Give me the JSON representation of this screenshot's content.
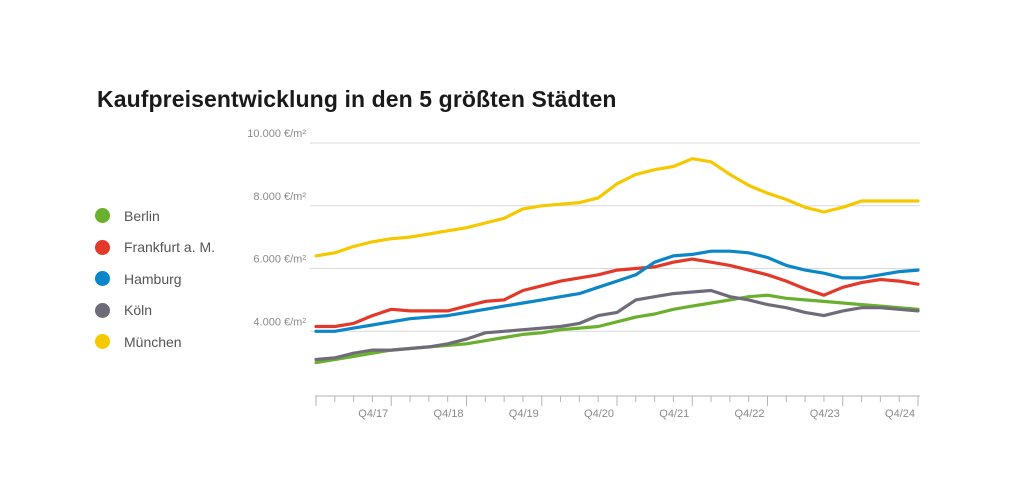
{
  "chart_data": {
    "type": "line",
    "title": "Kaufpreisentwicklung in den 5 größten Städten",
    "xlabel": "",
    "ylabel": "",
    "ylim": [
      2000,
      10000
    ],
    "yticks": [
      {
        "value": 10000,
        "label": "10.000 €/m²"
      },
      {
        "value": 8000,
        "label": "8.000 €/m²"
      },
      {
        "value": 6000,
        "label": "6.000 €/m²"
      },
      {
        "value": 4000,
        "label": "4.000 €/m²"
      }
    ],
    "x_tick_labels": [
      "Q4/17",
      "Q4/18",
      "Q4/19",
      "Q4/20",
      "Q4/21",
      "Q4/22",
      "Q4/23",
      "Q4/24"
    ],
    "legend_position": "left",
    "grid": "horizontal",
    "x": [
      "Q4/16",
      "Q1/17",
      "Q2/17",
      "Q3/17",
      "Q4/17",
      "Q1/18",
      "Q2/18",
      "Q3/18",
      "Q4/18",
      "Q1/19",
      "Q2/19",
      "Q3/19",
      "Q4/19",
      "Q1/20",
      "Q2/20",
      "Q3/20",
      "Q4/20",
      "Q1/21",
      "Q2/21",
      "Q3/21",
      "Q4/21",
      "Q1/22",
      "Q2/22",
      "Q3/22",
      "Q4/22",
      "Q1/23",
      "Q2/23",
      "Q3/23",
      "Q4/23",
      "Q1/24",
      "Q2/24",
      "Q3/24",
      "Q4/24"
    ],
    "series": [
      {
        "name": "Berlin",
        "color": "#6ab02e",
        "values": [
          3000,
          3100,
          3200,
          3300,
          3400,
          3450,
          3500,
          3550,
          3600,
          3700,
          3800,
          3900,
          3950,
          4050,
          4100,
          4150,
          4300,
          4450,
          4550,
          4700,
          4800,
          4900,
          5000,
          5100,
          5150,
          5050,
          5000,
          4950,
          4900,
          4850,
          4800,
          4750,
          4700
        ]
      },
      {
        "name": "Frankfurt a. M.",
        "color": "#e2392a",
        "values": [
          4150,
          4150,
          4250,
          4500,
          4700,
          4650,
          4650,
          4650,
          4800,
          4950,
          5000,
          5300,
          5450,
          5600,
          5700,
          5800,
          5950,
          6000,
          6050,
          6200,
          6300,
          6200,
          6100,
          5950,
          5800,
          5600,
          5350,
          5150,
          5400,
          5550,
          5650,
          5600,
          5500
        ]
      },
      {
        "name": "Hamburg",
        "color": "#0b86c9",
        "values": [
          4000,
          4000,
          4100,
          4200,
          4300,
          4400,
          4450,
          4500,
          4600,
          4700,
          4800,
          4900,
          5000,
          5100,
          5200,
          5400,
          5600,
          5800,
          6200,
          6400,
          6450,
          6550,
          6550,
          6500,
          6350,
          6100,
          5950,
          5850,
          5700,
          5700,
          5800,
          5900,
          5950
        ]
      },
      {
        "name": "Köln",
        "color": "#6f6c79",
        "values": [
          3100,
          3150,
          3300,
          3400,
          3400,
          3450,
          3500,
          3600,
          3750,
          3950,
          4000,
          4050,
          4100,
          4150,
          4250,
          4500,
          4600,
          5000,
          5100,
          5200,
          5250,
          5300,
          5100,
          5000,
          4850,
          4750,
          4600,
          4500,
          4650,
          4750,
          4750,
          4700,
          4650
        ]
      },
      {
        "name": "München",
        "color": "#f6c800",
        "values": [
          6400,
          6500,
          6700,
          6850,
          6950,
          7000,
          7100,
          7200,
          7300,
          7450,
          7600,
          7900,
          8000,
          8050,
          8100,
          8250,
          8700,
          9000,
          9150,
          9250,
          9500,
          9400,
          9000,
          8650,
          8400,
          8200,
          7950,
          7800,
          7950,
          8150,
          8150,
          8150,
          8150
        ]
      }
    ]
  }
}
